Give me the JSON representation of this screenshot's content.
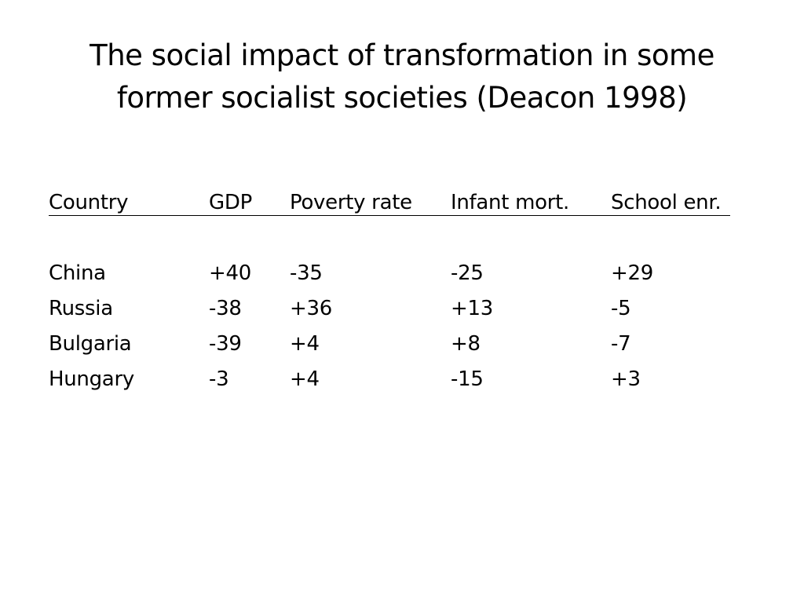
{
  "slide": {
    "title_line1": "The social impact of transformation in some",
    "title_line2": "former socialist societies (Deacon 1998)"
  },
  "table": {
    "headers": [
      "Country",
      "GDP",
      "Poverty rate",
      "Infant mort.",
      "School enr."
    ],
    "rows": [
      [
        "China",
        "+40",
        "-35",
        "-25",
        "+29"
      ],
      [
        "Russia",
        "-38",
        "+36",
        "+13",
        "-5"
      ],
      [
        "Bulgaria",
        "-39",
        "+4",
        "+8",
        "-7"
      ],
      [
        "Hungary",
        "-3",
        "+4",
        "-15",
        "+3"
      ]
    ]
  }
}
